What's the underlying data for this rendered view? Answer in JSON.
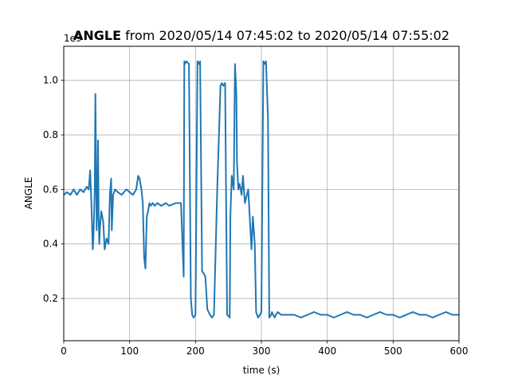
{
  "chart_data": {
    "type": "line",
    "title_bold": "ANGLE",
    "title_rest": " from 2020/05/14 07:45:02 to 2020/05/14 07:55:02",
    "xlabel": "time (s)",
    "ylabel": "ANGLE",
    "offset_text": "1e9",
    "xlim": [
      0,
      600
    ],
    "ylim": [
      0.045,
      1.125
    ],
    "xticks": [
      0,
      100,
      200,
      300,
      400,
      500,
      600
    ],
    "xtick_labels": [
      "0",
      "100",
      "200",
      "300",
      "400",
      "500",
      "600"
    ],
    "yticks": [
      0.2,
      0.4,
      0.6,
      0.8,
      1.0
    ],
    "ytick_labels": [
      "0.2",
      "0.4",
      "0.6",
      "0.8",
      "1.0"
    ],
    "grid": true,
    "line_color": "#1f77b4",
    "series": [
      {
        "x": [
          0,
          5,
          10,
          15,
          20,
          25,
          30,
          35,
          38,
          40,
          42,
          44,
          45,
          47,
          48,
          50,
          51,
          52,
          53,
          54,
          55,
          57,
          60,
          62,
          65,
          68,
          70,
          72,
          73,
          75,
          78,
          82,
          88,
          95,
          100,
          105,
          110,
          113,
          115,
          118,
          120,
          122,
          124,
          126,
          128,
          130,
          132,
          135,
          138,
          142,
          148,
          155,
          160,
          170,
          178,
          182,
          183,
          184,
          186,
          190,
          193,
          195,
          197,
          200,
          203,
          205,
          207,
          210,
          213,
          215,
          218,
          222,
          225,
          228,
          233,
          238,
          240,
          242,
          245,
          248,
          252,
          253,
          255,
          258,
          260,
          262,
          263,
          265,
          267,
          270,
          272,
          275,
          280,
          285,
          287,
          290,
          292,
          295,
          298,
          300,
          303,
          305,
          307,
          310,
          312,
          315,
          316,
          318,
          320,
          322,
          325,
          330,
          340,
          350,
          360,
          370,
          380,
          390,
          400,
          410,
          420,
          430,
          440,
          450,
          460,
          470,
          480,
          490,
          500,
          510,
          520,
          530,
          540,
          550,
          560,
          570,
          580,
          590,
          600
        ],
        "y": [
          0.58,
          0.59,
          0.58,
          0.6,
          0.58,
          0.6,
          0.59,
          0.61,
          0.6,
          0.67,
          0.55,
          0.38,
          0.42,
          0.6,
          0.95,
          0.45,
          0.55,
          0.78,
          0.5,
          0.4,
          0.46,
          0.52,
          0.48,
          0.38,
          0.42,
          0.4,
          0.58,
          0.64,
          0.45,
          0.58,
          0.6,
          0.59,
          0.58,
          0.6,
          0.59,
          0.58,
          0.6,
          0.65,
          0.64,
          0.6,
          0.55,
          0.35,
          0.31,
          0.5,
          0.52,
          0.55,
          0.54,
          0.55,
          0.54,
          0.55,
          0.54,
          0.55,
          0.54,
          0.55,
          0.55,
          0.28,
          1.07,
          1.06,
          1.07,
          1.06,
          0.2,
          0.14,
          0.13,
          0.14,
          1.07,
          1.06,
          1.07,
          0.3,
          0.29,
          0.28,
          0.16,
          0.14,
          0.13,
          0.14,
          0.6,
          0.98,
          0.99,
          0.98,
          0.99,
          0.14,
          0.13,
          0.5,
          0.65,
          0.6,
          1.06,
          0.95,
          0.7,
          0.6,
          0.62,
          0.58,
          0.65,
          0.55,
          0.6,
          0.38,
          0.5,
          0.4,
          0.15,
          0.13,
          0.14,
          0.15,
          1.07,
          1.06,
          1.07,
          0.86,
          0.13,
          0.14,
          0.15,
          0.14,
          0.13,
          0.14,
          0.15,
          0.14,
          0.14,
          0.14,
          0.13,
          0.14,
          0.15,
          0.14,
          0.14,
          0.13,
          0.14,
          0.15,
          0.14,
          0.14,
          0.13,
          0.14,
          0.15,
          0.14,
          0.14,
          0.13,
          0.14,
          0.15,
          0.14,
          0.14,
          0.13,
          0.14,
          0.15,
          0.14,
          0.14
        ]
      }
    ]
  }
}
